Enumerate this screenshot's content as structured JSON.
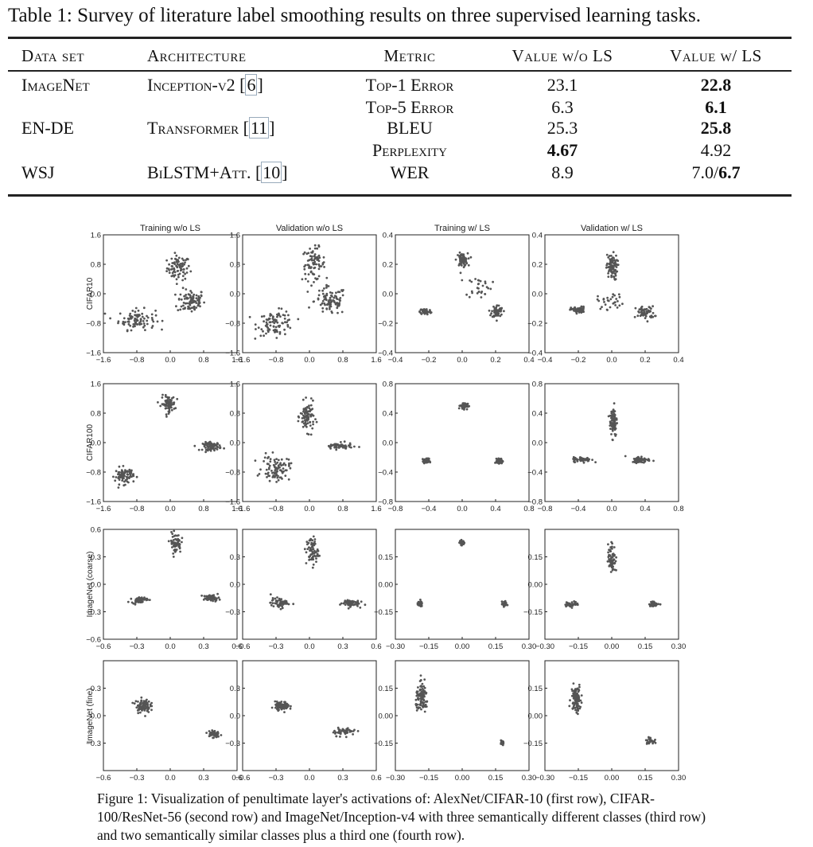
{
  "table": {
    "caption": "Table 1: Survey of literature label smoothing results on three supervised learning tasks.",
    "headers": [
      "Data set",
      "Architecture",
      "Metric",
      "Value w/o LS",
      "Value w/ LS"
    ],
    "rows": [
      {
        "dataset": "ImageNet",
        "arch": "Inception-v2",
        "ref": "6",
        "metric": "Top-1 Error",
        "wo": "23.1",
        "w": "22.8",
        "bold": "w"
      },
      {
        "dataset": "",
        "arch": "",
        "ref": "",
        "metric": "Top-5 Error",
        "wo": "6.3",
        "w": "6.1",
        "bold": "w"
      },
      {
        "dataset": "EN-DE",
        "arch": "Transformer",
        "ref": "11",
        "metric": "BLEU",
        "wo": "25.3",
        "w": "25.8",
        "bold": "w"
      },
      {
        "dataset": "",
        "arch": "",
        "ref": "",
        "metric": "Perplexity",
        "wo": "4.67",
        "w": "4.92",
        "bold": "wo"
      },
      {
        "dataset": "WSJ",
        "arch": "BiLSTM+Att.",
        "ref": "10",
        "metric": "WER",
        "wo": "8.9",
        "w_plain": "7.0/",
        "w_bold": "6.7",
        "bold": "split"
      }
    ]
  },
  "figure": {
    "column_titles": [
      "Training w/o LS",
      "Validation w/o LS",
      "Training w/ LS",
      "Validation w/ LS"
    ],
    "row_labels": [
      "CIFAR10",
      "CIFAR100",
      "ImageNet (coarse)",
      "ImageNet (fine)"
    ],
    "caption": "Figure 1: Visualization of penultimate layer's activations of: AlexNet/CIFAR-10 (first row), CIFAR-100/ResNet-56 (second row) and ImageNet/Inception-v4 with three semantically different classes (third row) and two semantically similar classes plus a third one (fourth row).",
    "panels": [
      [
        {
          "xt": [
            "−1.6",
            "−0.8",
            "0.0",
            "0.8",
            "1.6"
          ],
          "yt": [
            "1.6",
            "0.8",
            "0.0",
            "−0.8",
            "−1.6"
          ],
          "range": [
            -1.6,
            1.6,
            -1.6,
            1.6
          ],
          "clusters": [
            [
              0.2,
              0.7,
              0.25,
              0.3,
              80
            ],
            [
              0.5,
              -0.2,
              0.3,
              0.3,
              90
            ],
            [
              -0.8,
              -0.7,
              0.4,
              0.25,
              90
            ]
          ]
        },
        {
          "xt": [
            "−1.6",
            "−0.8",
            "0.0",
            "0.8",
            "1.6"
          ],
          "yt": [
            "1.6",
            "0.8",
            "0.0",
            "−0.8",
            "−1.6"
          ],
          "range": [
            -1.6,
            1.6,
            -1.6,
            1.6
          ],
          "clusters": [
            [
              0.1,
              0.8,
              0.25,
              0.4,
              80
            ],
            [
              0.5,
              -0.2,
              0.35,
              0.35,
              90
            ],
            [
              -0.8,
              -0.8,
              0.4,
              0.3,
              90
            ]
          ]
        },
        {
          "xt": [
            "−0.4",
            "−0.2",
            "0.0",
            "0.2",
            "0.4"
          ],
          "yt": [
            "0.4",
            "0.2",
            "0.0",
            "−0.2",
            "−0.4"
          ],
          "range": [
            -0.4,
            0.4,
            -0.4,
            0.4
          ],
          "clusters": [
            [
              0.0,
              0.23,
              0.03,
              0.04,
              70
            ],
            [
              -0.22,
              -0.12,
              0.03,
              0.02,
              60
            ],
            [
              0.21,
              -0.12,
              0.03,
              0.04,
              60
            ],
            [
              0.1,
              0.05,
              0.07,
              0.07,
              30
            ]
          ]
        },
        {
          "xt": [
            "−0.4",
            "−0.2",
            "0.0",
            "0.2",
            "0.4"
          ],
          "yt": [
            "0.4",
            "0.2",
            "0.0",
            "−0.2",
            "−0.4"
          ],
          "range": [
            -0.4,
            0.4,
            -0.4,
            0.4
          ],
          "clusters": [
            [
              0.0,
              0.18,
              0.03,
              0.08,
              80
            ],
            [
              -0.2,
              -0.11,
              0.04,
              0.02,
              50
            ],
            [
              0.2,
              -0.13,
              0.05,
              0.04,
              60
            ],
            [
              0.0,
              -0.05,
              0.08,
              0.05,
              30
            ]
          ]
        }
      ],
      [
        {
          "xt": [
            "−1.6",
            "−0.8",
            "0.0",
            "0.8",
            "1.6"
          ],
          "yt": [
            "1.6",
            "0.8",
            "0.0",
            "−0.8",
            "−1.6"
          ],
          "range": [
            -1.6,
            1.6,
            -1.6,
            1.6
          ],
          "clusters": [
            [
              -0.05,
              1.05,
              0.15,
              0.2,
              80
            ],
            [
              1.0,
              -0.1,
              0.2,
              0.1,
              80
            ],
            [
              -1.1,
              -0.9,
              0.2,
              0.2,
              80
            ]
          ]
        },
        {
          "xt": [
            "−1.6",
            "−0.8",
            "0.0",
            "0.8",
            "1.6"
          ],
          "yt": [
            "1.6",
            "0.8",
            "0.0",
            "−0.8",
            "−1.6"
          ],
          "range": [
            -1.6,
            1.6,
            -1.6,
            1.6
          ],
          "clusters": [
            [
              -0.05,
              0.7,
              0.15,
              0.35,
              90
            ],
            [
              0.7,
              -0.1,
              0.3,
              0.08,
              60
            ],
            [
              -0.8,
              -0.7,
              0.3,
              0.3,
              90
            ]
          ]
        },
        {
          "xt": [
            "−0.8",
            "−0.4",
            "0.0",
            "0.4",
            "0.8"
          ],
          "yt": [
            "0.8",
            "0.4",
            "0.0",
            "−0.4",
            "−0.8"
          ],
          "range": [
            -0.8,
            0.8,
            -0.8,
            0.8
          ],
          "clusters": [
            [
              0.02,
              0.5,
              0.04,
              0.04,
              70
            ],
            [
              -0.43,
              -0.25,
              0.03,
              0.03,
              70
            ],
            [
              0.45,
              -0.25,
              0.03,
              0.03,
              70
            ]
          ]
        },
        {
          "xt": [
            "−0.8",
            "−0.4",
            "0.0",
            "0.4",
            "0.8"
          ],
          "yt": [
            "0.8",
            "0.4",
            "0.0",
            "−0.4",
            "−0.8"
          ],
          "range": [
            -0.8,
            0.8,
            -0.8,
            0.8
          ],
          "clusters": [
            [
              0.02,
              0.3,
              0.04,
              0.2,
              90
            ],
            [
              -0.35,
              -0.23,
              0.1,
              0.03,
              60
            ],
            [
              0.35,
              -0.23,
              0.1,
              0.04,
              60
            ]
          ]
        }
      ],
      [
        {
          "xt": [
            "−0.6",
            "−0.3",
            "0.0",
            "0.3",
            "0.6"
          ],
          "yt": [
            "0.6",
            "0.3",
            "0.0",
            "−0.3",
            "−0.6"
          ],
          "range": [
            -0.65,
            0.65,
            -0.6,
            0.6
          ],
          "clusters": [
            [
              0.05,
              0.45,
              0.05,
              0.1,
              60
            ],
            [
              -0.3,
              -0.17,
              0.07,
              0.03,
              60
            ],
            [
              0.4,
              -0.15,
              0.07,
              0.03,
              60
            ]
          ]
        },
        {
          "xt": [
            "−0.6",
            "−0.3",
            "0.0",
            "0.3",
            "0.6"
          ],
          "yt": [
            "0.3",
            "0.0",
            "−0.3"
          ],
          "range": [
            -0.65,
            0.6,
            -0.5,
            0.5
          ],
          "clusters": [
            [
              0.0,
              0.3,
              0.05,
              0.12,
              70
            ],
            [
              -0.3,
              -0.17,
              0.08,
              0.04,
              60
            ],
            [
              0.35,
              -0.17,
              0.08,
              0.03,
              60
            ]
          ]
        },
        {
          "xt": [
            "−0.30",
            "−0.15",
            "0.00",
            "0.15",
            "0.30"
          ],
          "yt": [
            "0.15",
            "0.00",
            "−0.15"
          ],
          "range": [
            -0.3,
            0.3,
            -0.25,
            0.25
          ],
          "clusters": [
            [
              0.0,
              0.19,
              0.01,
              0.01,
              40
            ],
            [
              -0.19,
              -0.09,
              0.01,
              0.01,
              40
            ],
            [
              0.19,
              -0.09,
              0.01,
              0.01,
              40
            ]
          ]
        },
        {
          "xt": [
            "−0.30",
            "−0.15",
            "0.00",
            "0.15",
            "0.30"
          ],
          "yt": [
            "0.15",
            "0.00",
            "−0.15"
          ],
          "range": [
            -0.3,
            0.3,
            -0.25,
            0.25
          ],
          "clusters": [
            [
              0.0,
              0.12,
              0.015,
              0.06,
              70
            ],
            [
              -0.18,
              -0.09,
              0.03,
              0.01,
              40
            ],
            [
              0.19,
              -0.09,
              0.02,
              0.01,
              40
            ]
          ]
        }
      ],
      [
        {
          "xt": [
            "−0.6",
            "−0.3",
            "0.0",
            "0.3",
            "0.6"
          ],
          "yt": [
            "0.3",
            "0.0",
            "−0.3"
          ],
          "range": [
            -0.65,
            0.6,
            -0.45,
            0.45
          ],
          "clusters": [
            [
              -0.28,
              0.08,
              0.06,
              0.05,
              90
            ],
            [
              0.38,
              -0.15,
              0.05,
              0.03,
              50
            ]
          ]
        },
        {
          "xt": [
            "−0.6",
            "−0.3",
            "0.0",
            "0.3",
            "0.6"
          ],
          "yt": [
            "0.3",
            "0.0",
            "−0.3"
          ],
          "range": [
            -0.65,
            0.6,
            -0.45,
            0.45
          ],
          "clusters": [
            [
              -0.28,
              0.08,
              0.06,
              0.03,
              100
            ],
            [
              0.3,
              -0.13,
              0.1,
              0.03,
              50
            ]
          ]
        },
        {
          "xt": [
            "−0.30",
            "−0.15",
            "0.00",
            "0.15",
            "0.30"
          ],
          "yt": [
            "0.15",
            "0.00",
            "−0.15"
          ],
          "range": [
            -0.3,
            0.3,
            -0.22,
            0.22
          ],
          "clusters": [
            [
              -0.18,
              0.07,
              0.025,
              0.05,
              100
            ],
            [
              0.18,
              -0.11,
              0.008,
              0.01,
              30
            ]
          ]
        },
        {
          "xt": [
            "−0.30",
            "−0.15",
            "0.00",
            "0.15",
            "0.30"
          ],
          "yt": [
            "0.15",
            "0.00",
            "−0.15"
          ],
          "range": [
            -0.3,
            0.3,
            -0.22,
            0.22
          ],
          "clusters": [
            [
              -0.16,
              0.07,
              0.02,
              0.05,
              100
            ],
            [
              0.17,
              -0.1,
              0.015,
              0.01,
              30
            ]
          ]
        }
      ]
    ]
  }
}
